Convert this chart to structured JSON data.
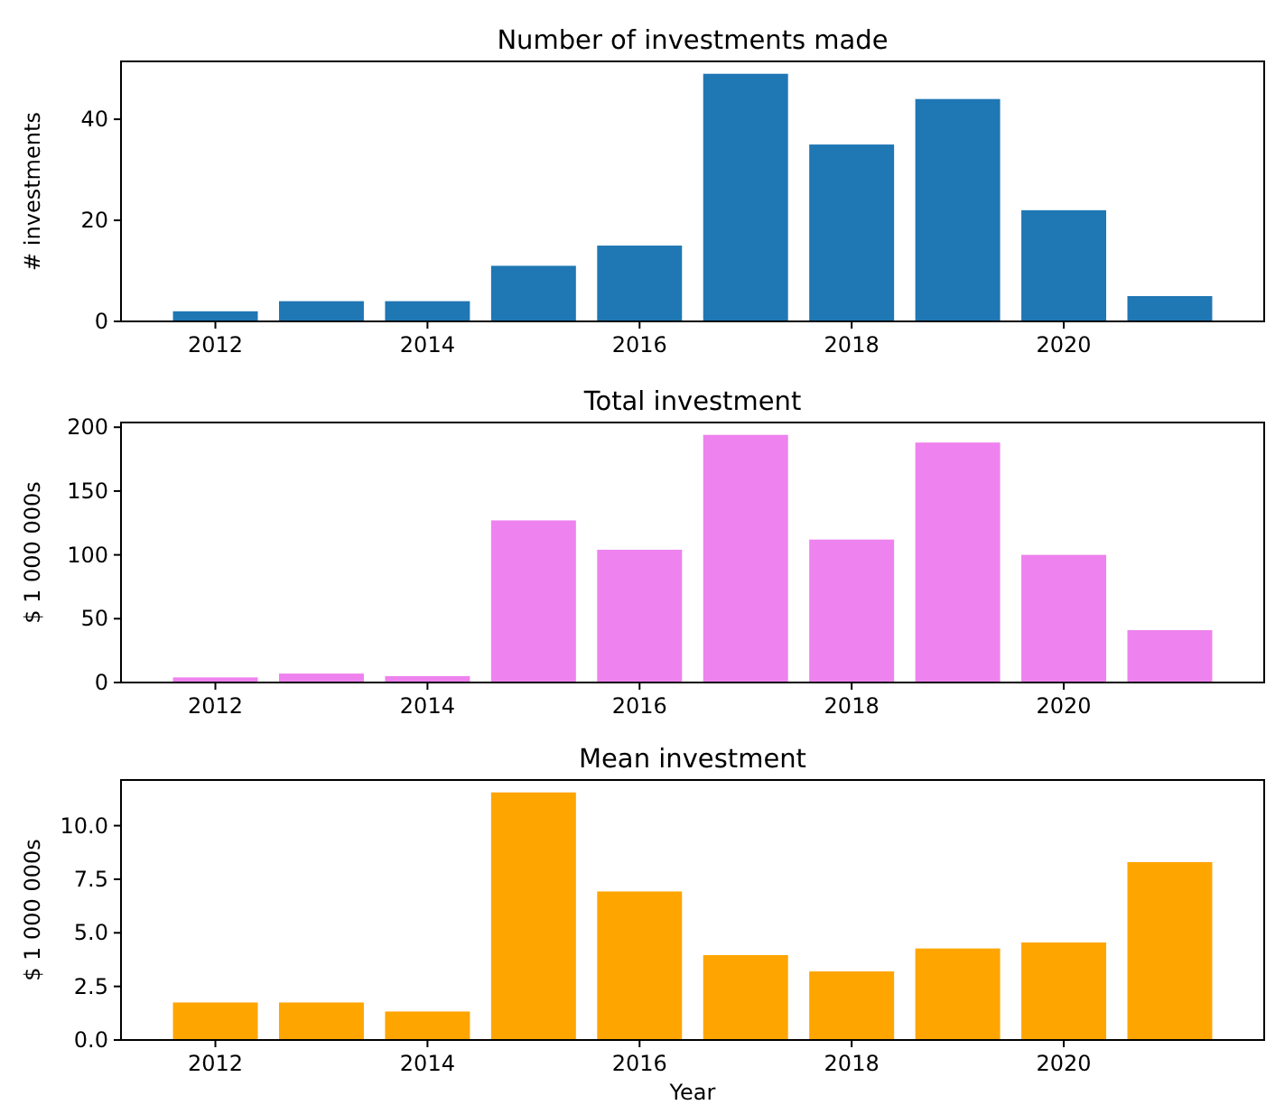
{
  "chart_data": [
    {
      "type": "bar",
      "title": "Number of investments made",
      "ylabel": "# investments",
      "x": [
        2012,
        2013,
        2014,
        2015,
        2016,
        2017,
        2018,
        2019,
        2020,
        2021
      ],
      "values": [
        2,
        4,
        4,
        11,
        15,
        49,
        35,
        44,
        22,
        5
      ],
      "color": "#1f77b4",
      "xlim": [
        2011.11,
        2021.89
      ],
      "xticks": [
        2012,
        2014,
        2016,
        2018,
        2020
      ],
      "ylim": [
        0,
        51.45
      ],
      "yticks": [
        0,
        20,
        40
      ]
    },
    {
      "type": "bar",
      "title": "Total investment",
      "ylabel": "$ 1 000 000s",
      "x": [
        2012,
        2013,
        2014,
        2015,
        2016,
        2017,
        2018,
        2019,
        2020,
        2021
      ],
      "values": [
        4,
        7,
        5,
        127,
        104,
        194,
        112,
        188,
        100,
        41
      ],
      "color": "#ee82ee",
      "xlim": [
        2011.11,
        2021.89
      ],
      "xticks": [
        2012,
        2014,
        2016,
        2018,
        2020
      ],
      "ylim": [
        0,
        203.7
      ],
      "yticks": [
        0,
        50,
        100,
        150,
        200
      ]
    },
    {
      "type": "bar",
      "title": "Mean investment",
      "ylabel": "$ 1 000 000s",
      "xlabel": "Year",
      "x": [
        2012,
        2013,
        2014,
        2015,
        2016,
        2017,
        2018,
        2019,
        2020,
        2021
      ],
      "values": [
        1.75,
        1.75,
        1.33,
        11.55,
        6.93,
        3.96,
        3.2,
        4.27,
        4.55,
        8.3
      ],
      "color": "#ffa500",
      "xlim": [
        2011.11,
        2021.89
      ],
      "xticks": [
        2012,
        2014,
        2016,
        2018,
        2020
      ],
      "ylim": [
        0,
        12.13
      ],
      "yticks": [
        {
          "value": 0,
          "label": "0.0"
        },
        {
          "value": 2.5,
          "label": "2.5"
        },
        {
          "value": 5,
          "label": "5.0"
        },
        {
          "value": 7.5,
          "label": "7.5"
        },
        {
          "value": 10,
          "label": "10.0"
        }
      ]
    }
  ]
}
